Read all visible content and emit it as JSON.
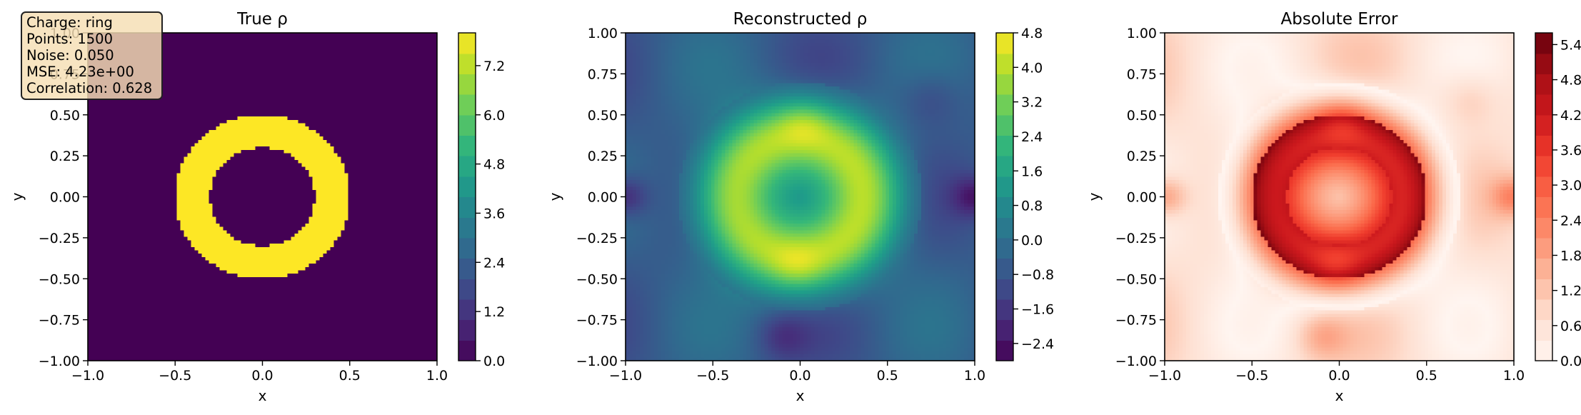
{
  "chart_data": [
    {
      "type": "heatmap",
      "title": "True ρ",
      "xlabel": "x",
      "ylabel": "y",
      "xlim": [
        -1.0,
        1.0
      ],
      "ylim": [
        -1.0,
        1.0
      ],
      "xticks": [
        "−1.0",
        "−0.5",
        "0.0",
        "0.5",
        "1.0"
      ],
      "yticks": [
        "−1.00",
        "−0.75",
        "−0.50",
        "−0.25",
        "0.00",
        "0.25",
        "0.50",
        "0.75",
        "1.00"
      ],
      "colormap": "viridis",
      "colorbar_range": [
        0.0,
        8.0
      ],
      "colorbar_ticks": [
        "0.0",
        "1.2",
        "2.4",
        "3.6",
        "4.8",
        "6.0",
        "7.2"
      ],
      "field": {
        "shape": "ring",
        "inner_radius": 0.3,
        "outer_radius": 0.5,
        "inside_value": 8.0,
        "outside_value": 0.0
      }
    },
    {
      "type": "heatmap",
      "title": "Reconstructed ρ",
      "xlabel": "x",
      "ylabel": "y",
      "xlim": [
        -1.0,
        1.0
      ],
      "ylim": [
        -1.0,
        1.0
      ],
      "xticks": [
        "−1.0",
        "−0.5",
        "0.0",
        "0.5",
        "1.0"
      ],
      "yticks": [
        "−1.00",
        "−0.75",
        "−0.50",
        "−0.25",
        "0.00",
        "0.25",
        "0.50",
        "0.75",
        "1.00"
      ],
      "colormap": "viridis",
      "colorbar_range": [
        -2.8,
        4.8
      ],
      "colorbar_ticks": [
        "−2.4",
        "−1.6",
        "−0.8",
        "0.0",
        "0.8",
        "1.6",
        "2.4",
        "3.2",
        "4.0",
        "4.8"
      ],
      "field": {
        "shape": "smoothed ring",
        "peak_value": 4.6,
        "center_value": 2.0,
        "min_value": -2.6
      }
    },
    {
      "type": "heatmap",
      "title": "Absolute Error",
      "xlabel": "x",
      "ylabel": "y",
      "xlim": [
        -1.0,
        1.0
      ],
      "ylim": [
        -1.0,
        1.0
      ],
      "xticks": [
        "−1.0",
        "−0.5",
        "0.0",
        "0.5",
        "1.0"
      ],
      "yticks": [
        "−1.00",
        "−0.75",
        "−0.50",
        "−0.25",
        "0.00",
        "0.25",
        "0.50",
        "0.75",
        "1.00"
      ],
      "colormap": "reds",
      "colorbar_range": [
        0.0,
        5.6
      ],
      "colorbar_ticks": [
        "0.0",
        "0.6",
        "1.2",
        "1.8",
        "2.4",
        "3.0",
        "3.6",
        "4.2",
        "4.8",
        "5.4"
      ],
      "field": {
        "shape": "absolute difference",
        "max_value": 5.5
      }
    }
  ],
  "info": {
    "charge": "Charge: ring",
    "points": "Points: 1500",
    "noise": "Noise: 0.050",
    "mse": "MSE: 4.23e+00",
    "correlation": "Correlation: 0.628"
  }
}
